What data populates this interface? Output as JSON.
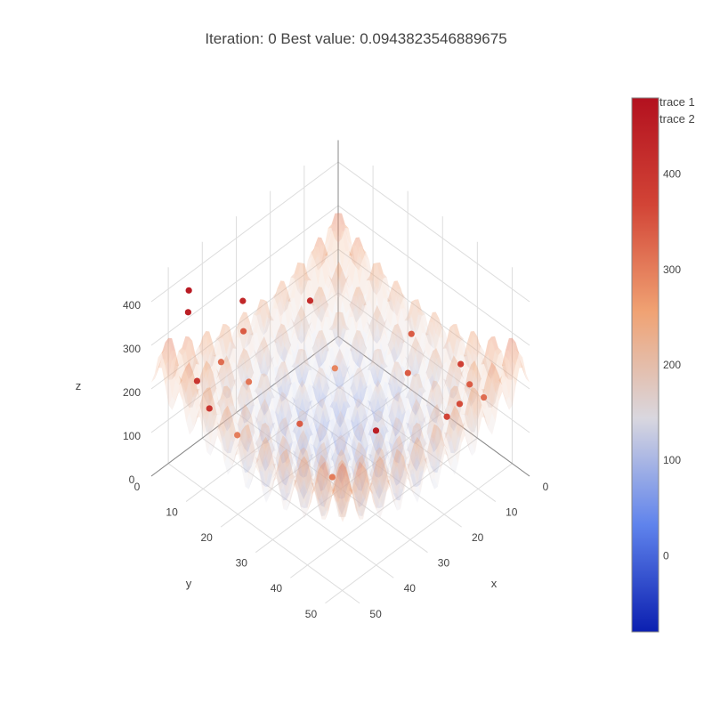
{
  "chart_data": {
    "type": "surface",
    "title": "Iteration: 0 Best value: 0.0943823546889675",
    "legend": [
      "trace 1",
      "trace 2"
    ],
    "legend_placement": "top-right",
    "axes": {
      "x": {
        "label": "x",
        "ticks": [
          0,
          10,
          20,
          30,
          40,
          50
        ],
        "range": [
          0,
          55
        ]
      },
      "y": {
        "label": "y",
        "ticks": [
          0,
          10,
          20,
          30,
          40,
          50
        ],
        "range": [
          0,
          55
        ]
      },
      "z": {
        "label": "z",
        "ticks": [
          0,
          100,
          200,
          300,
          400
        ],
        "range": [
          0,
          450
        ]
      }
    },
    "colorbar": {
      "ticks": [
        0,
        100,
        200,
        300,
        400
      ],
      "range": [
        -80,
        480
      ],
      "colorscale": [
        "#0b1fb0",
        "#5f83ec",
        "#d9d7df",
        "#f0a273",
        "#d24436",
        "#b3111f"
      ]
    },
    "scatter_points": [
      {
        "x": 49.9,
        "y": 5.8,
        "z": 430,
        "c": 460
      },
      {
        "x": 50,
        "y": 5.7,
        "z": 380,
        "c": 450
      },
      {
        "x": 42.4,
        "y": 14,
        "z": 410,
        "c": 430
      },
      {
        "x": 31.7,
        "y": 22.9,
        "z": 400,
        "c": 420
      },
      {
        "x": 41.4,
        "y": 13.2,
        "z": 330,
        "c": 340
      },
      {
        "x": 44.7,
        "y": 10,
        "z": 260,
        "c": 320
      },
      {
        "x": 48.5,
        "y": 6.8,
        "z": 220,
        "c": 400
      },
      {
        "x": 39.4,
        "y": 12.8,
        "z": 200,
        "c": 310
      },
      {
        "x": 46.1,
        "y": 8,
        "z": 150,
        "c": 400
      },
      {
        "x": 43,
        "y": 13,
        "z": 100,
        "c": 300
      },
      {
        "x": 28.2,
        "y": 16.5,
        "z": 60,
        "c": 340
      },
      {
        "x": 15.5,
        "y": 14.2,
        "z": 100,
        "c": 290
      },
      {
        "x": 14.9,
        "y": 35.6,
        "z": 300,
        "c": 340
      },
      {
        "x": 9.4,
        "y": 44.4,
        "z": 250,
        "c": 380
      },
      {
        "x": 14.5,
        "y": 34.2,
        "z": 200,
        "c": 340
      },
      {
        "x": 7.8,
        "y": 45.4,
        "z": 200,
        "c": 340
      },
      {
        "x": 6.6,
        "y": 48.3,
        "z": 180,
        "c": 320
      },
      {
        "x": 8.8,
        "y": 43.5,
        "z": 150,
        "c": 360
      },
      {
        "x": 10.6,
        "y": 41.6,
        "z": 120,
        "c": 370
      },
      {
        "x": 20.2,
        "y": 30.6,
        "z": 80,
        "c": 450
      },
      {
        "x": 30.6,
        "y": 28.2,
        "z": 20,
        "c": 300
      }
    ]
  }
}
